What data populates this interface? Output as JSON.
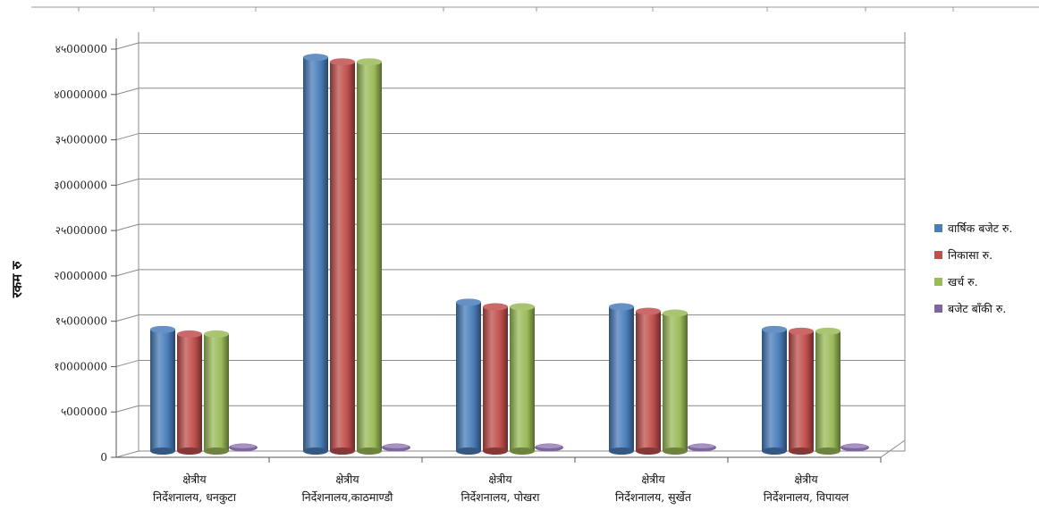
{
  "chart_data": {
    "type": "bar",
    "title": "",
    "xlabel": "",
    "ylabel": "रकम रु",
    "ylim": [
      0,
      45000000
    ],
    "y_ticks": [
      0,
      5000000,
      10000000,
      15000000,
      20000000,
      25000000,
      30000000,
      35000000,
      40000000,
      45000000
    ],
    "y_tick_labels": [
      "0",
      "५000000",
      "१0000000",
      "१५000000",
      "२0000000",
      "२५000000",
      "३0000000",
      "३५000000",
      "४0000000",
      "४५000000"
    ],
    "categories": [
      [
        "क्षेत्रीय",
        "निर्देशनालय, धनकुटा"
      ],
      [
        "क्षेत्रीय",
        "निर्देशनालय,काठमाण्डौ"
      ],
      [
        "क्षेत्रीय",
        "निर्देशनालय, पोखरा"
      ],
      [
        "क्षेत्रीय",
        "निर्देशनालय, सुर्खेत"
      ],
      [
        "क्षेत्रीय",
        "निर्देशनालय, विपायल"
      ]
    ],
    "series": [
      {
        "name": "वार्षिक बजेट रु.",
        "color": "#4a7ebb",
        "values": [
          14000000,
          44000000,
          17000000,
          16500000,
          14000000
        ]
      },
      {
        "name": "निकासा रु.",
        "color": "#c0504d",
        "values": [
          13500000,
          43500000,
          16500000,
          16000000,
          13800000
        ]
      },
      {
        "name": "खर्च रु.",
        "color": "#9bbb59",
        "values": [
          13500000,
          43500000,
          16500000,
          15800000,
          13800000
        ]
      },
      {
        "name": "बजेट बाँकी रु.",
        "color": "#8064a2",
        "values": [
          200000,
          450000,
          250000,
          450000,
          100000
        ]
      }
    ],
    "grid": true,
    "legend_position": "right"
  }
}
